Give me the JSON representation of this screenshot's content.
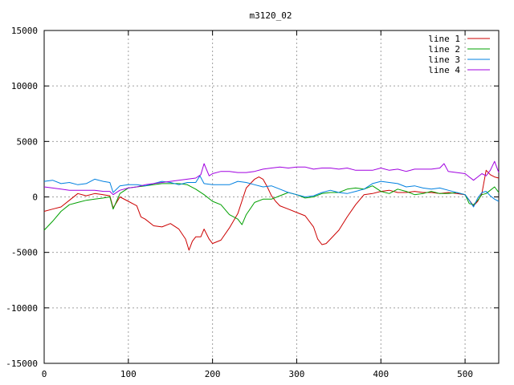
{
  "chart_data": {
    "type": "line",
    "title": "m3120_02",
    "xlabel": "",
    "ylabel": "",
    "xlim": [
      0,
      540
    ],
    "ylim": [
      -15000,
      15000
    ],
    "xticks": [
      0,
      100,
      200,
      300,
      400,
      500
    ],
    "yticks": [
      -15000,
      -10000,
      -5000,
      0,
      5000,
      10000,
      15000
    ],
    "grid": true,
    "legend_position": "top-right",
    "series": [
      {
        "name": "line 1",
        "color": "#cc0000",
        "x": [
          0,
          10,
          20,
          30,
          40,
          50,
          60,
          70,
          78,
          82,
          90,
          100,
          110,
          115,
          120,
          130,
          140,
          150,
          160,
          168,
          172,
          176,
          180,
          186,
          190,
          196,
          200,
          210,
          220,
          230,
          240,
          250,
          255,
          260,
          265,
          270,
          275,
          280,
          290,
          300,
          310,
          320,
          325,
          330,
          335,
          340,
          350,
          360,
          370,
          380,
          390,
          400,
          410,
          420,
          430,
          440,
          450,
          460,
          470,
          480,
          490,
          500,
          505,
          510,
          515,
          520,
          525,
          530,
          535,
          540
        ],
        "y": [
          -1300,
          -1100,
          -900,
          -300,
          300,
          100,
          300,
          200,
          100,
          -1000,
          0,
          -400,
          -800,
          -1800,
          -2000,
          -2600,
          -2700,
          -2400,
          -2900,
          -3800,
          -4800,
          -4000,
          -3600,
          -3600,
          -2900,
          -3800,
          -4200,
          -3900,
          -2800,
          -1500,
          800,
          1600,
          1800,
          1600,
          900,
          100,
          -400,
          -800,
          -1100,
          -1400,
          -1700,
          -2700,
          -3800,
          -4300,
          -4200,
          -3800,
          -3000,
          -1800,
          -700,
          200,
          300,
          500,
          600,
          400,
          400,
          500,
          400,
          400,
          300,
          400,
          300,
          200,
          -300,
          -800,
          -400,
          300,
          2400,
          2000,
          1800,
          1700
        ]
      },
      {
        "name": "line 2",
        "color": "#00a000",
        "x": [
          0,
          10,
          20,
          30,
          40,
          50,
          60,
          70,
          78,
          82,
          90,
          100,
          110,
          120,
          130,
          140,
          150,
          160,
          170,
          180,
          190,
          200,
          210,
          220,
          230,
          235,
          240,
          250,
          260,
          270,
          280,
          290,
          300,
          310,
          320,
          330,
          340,
          350,
          360,
          370,
          380,
          390,
          400,
          410,
          420,
          430,
          440,
          450,
          460,
          470,
          480,
          490,
          500,
          505,
          510,
          515,
          520,
          525,
          530,
          535,
          540
        ],
        "y": [
          -3000,
          -2200,
          -1300,
          -700,
          -500,
          -300,
          -200,
          -100,
          0,
          -1100,
          300,
          800,
          900,
          1000,
          1100,
          1200,
          1200,
          1200,
          1100,
          700,
          200,
          -400,
          -700,
          -1600,
          -2000,
          -2500,
          -1600,
          -500,
          -200,
          -200,
          100,
          400,
          200,
          -100,
          0,
          300,
          400,
          400,
          700,
          800,
          700,
          1000,
          500,
          300,
          700,
          500,
          200,
          300,
          500,
          300,
          300,
          400,
          200,
          -600,
          -700,
          -300,
          200,
          300,
          600,
          900,
          400
        ]
      },
      {
        "name": "line 3",
        "color": "#0080e0",
        "x": [
          0,
          10,
          20,
          30,
          40,
          50,
          60,
          70,
          78,
          82,
          90,
          100,
          110,
          120,
          130,
          140,
          150,
          160,
          170,
          180,
          185,
          190,
          200,
          210,
          220,
          230,
          240,
          250,
          260,
          270,
          280,
          290,
          300,
          310,
          320,
          330,
          340,
          350,
          360,
          370,
          380,
          390,
          400,
          410,
          420,
          430,
          440,
          450,
          460,
          470,
          480,
          490,
          500,
          505,
          510,
          515,
          520,
          525,
          530,
          535,
          540
        ],
        "y": [
          1400,
          1500,
          1200,
          1300,
          1100,
          1200,
          1600,
          1400,
          1300,
          400,
          1000,
          1100,
          1100,
          1000,
          1200,
          1400,
          1300,
          1100,
          1300,
          1300,
          1900,
          1200,
          1100,
          1100,
          1100,
          1400,
          1300,
          1100,
          900,
          1000,
          700,
          400,
          200,
          0,
          100,
          400,
          600,
          400,
          300,
          500,
          700,
          1200,
          1400,
          1300,
          1200,
          900,
          1000,
          800,
          700,
          800,
          600,
          400,
          200,
          -300,
          -900,
          -100,
          400,
          500,
          100,
          -200,
          -400
        ]
      },
      {
        "name": "line 4",
        "color": "#a000e0",
        "x": [
          0,
          10,
          20,
          30,
          40,
          50,
          60,
          70,
          78,
          82,
          90,
          100,
          110,
          120,
          130,
          140,
          150,
          160,
          170,
          180,
          186,
          190,
          196,
          200,
          210,
          220,
          230,
          240,
          250,
          260,
          270,
          280,
          290,
          300,
          310,
          320,
          330,
          340,
          350,
          360,
          370,
          380,
          390,
          400,
          410,
          420,
          430,
          440,
          450,
          460,
          470,
          475,
          480,
          490,
          500,
          505,
          510,
          515,
          520,
          525,
          530,
          535,
          540
        ],
        "y": [
          900,
          800,
          700,
          600,
          600,
          600,
          600,
          500,
          500,
          200,
          600,
          800,
          900,
          1100,
          1200,
          1300,
          1400,
          1500,
          1600,
          1700,
          2000,
          3000,
          1900,
          2100,
          2300,
          2300,
          2200,
          2200,
          2300,
          2500,
          2600,
          2700,
          2600,
          2700,
          2700,
          2500,
          2600,
          2600,
          2500,
          2600,
          2400,
          2400,
          2400,
          2600,
          2400,
          2500,
          2300,
          2500,
          2500,
          2500,
          2600,
          3000,
          2300,
          2200,
          2100,
          1800,
          1500,
          1800,
          2100,
          1900,
          2400,
          3200,
          2200
        ]
      }
    ]
  }
}
